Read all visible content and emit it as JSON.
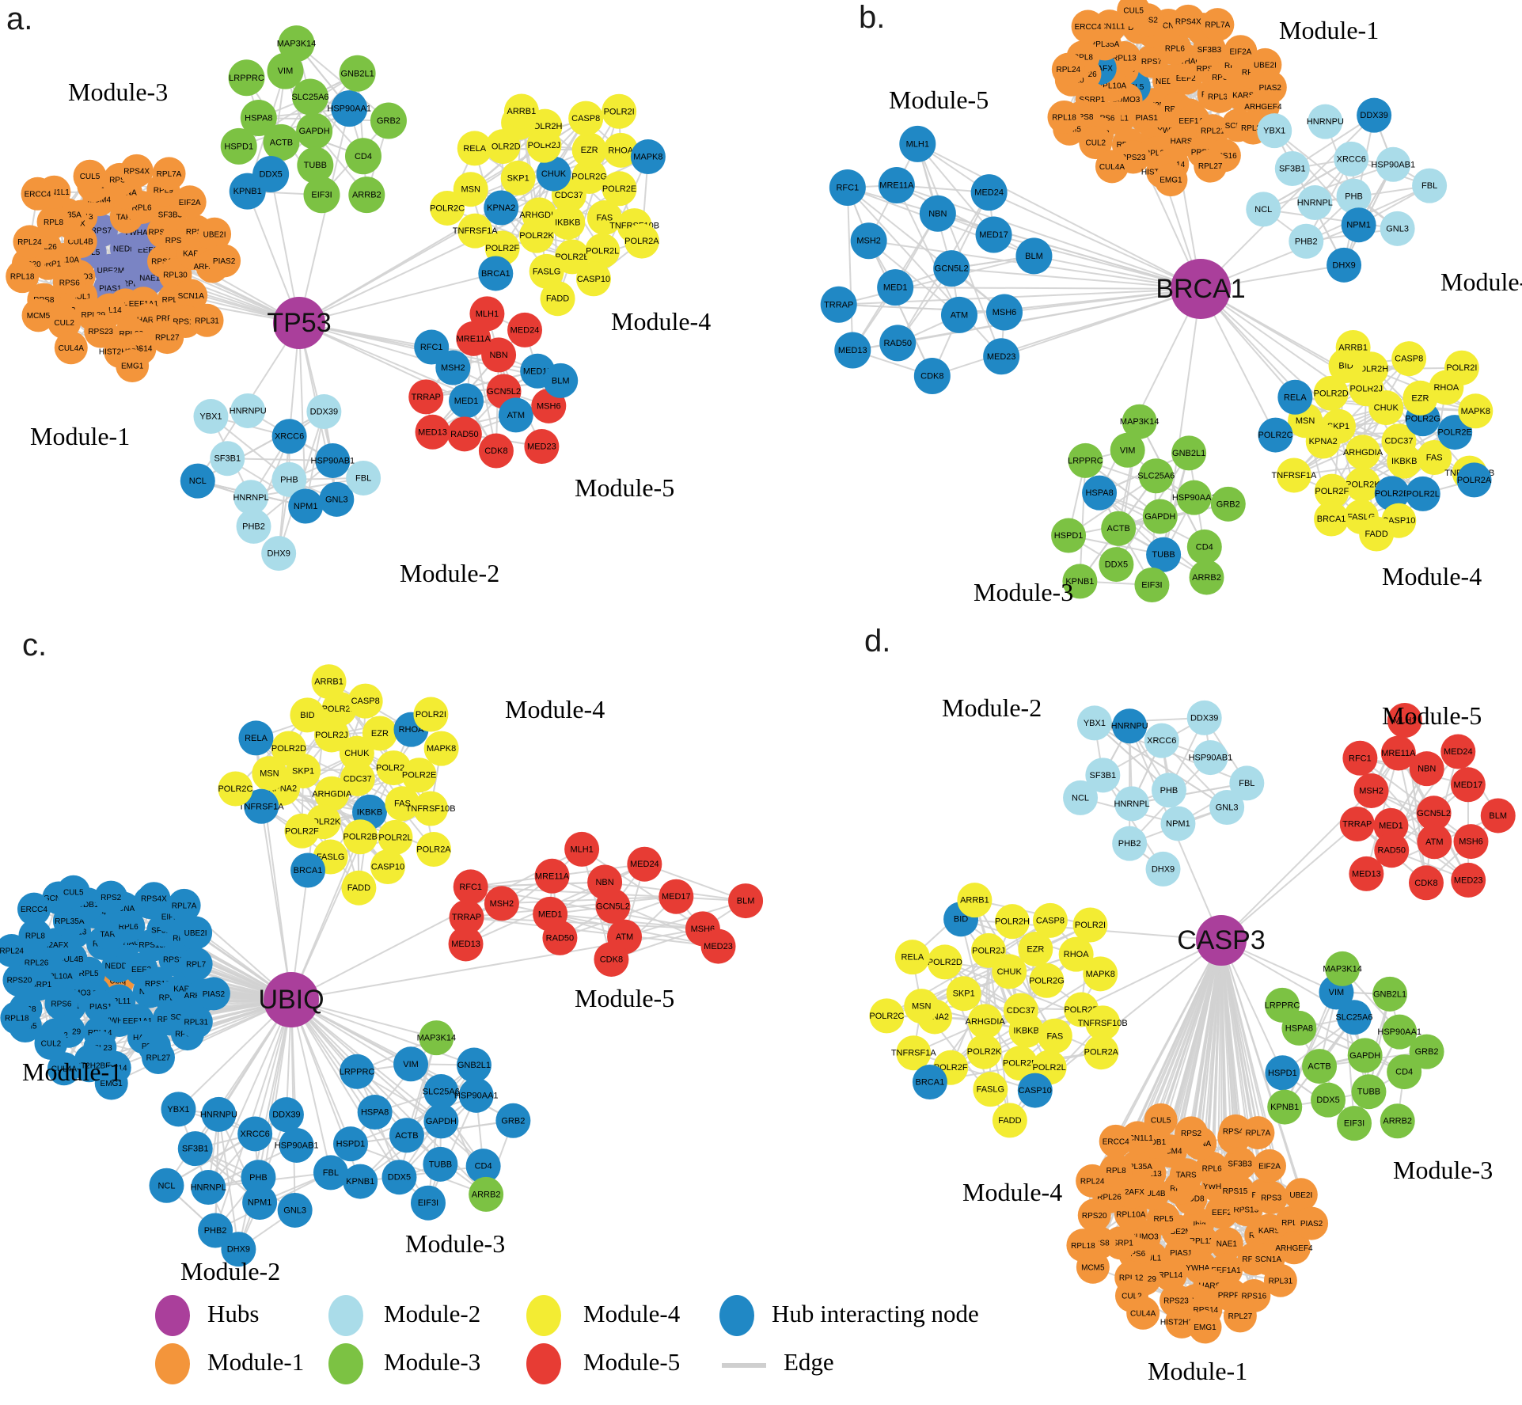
{
  "colors": {
    "hub": "#AA3F9B",
    "module1": "#F3953B",
    "module2": "#AADCE9",
    "module3": "#7CC243",
    "module4": "#F3EC33",
    "module5": "#E73C34",
    "hub_interacting": "#2088C5",
    "indigo": "#7A84C4",
    "edge": "#D2D2D2"
  },
  "sets": {
    "m1": [
      "Ubiq",
      "UBE2M",
      "NEDD8",
      "RPL11",
      "RPL5",
      "EEF2",
      "PIAS1",
      "RPS7",
      "NAE1",
      "SUMO3",
      "YWHAG",
      "YWHAH",
      "CUL4B",
      "RPS13",
      "CUL1",
      "TARS",
      "EEF1A1",
      "RPL10A",
      "RPS15A",
      "RPL14",
      "RPL13",
      "RPL30",
      "RPS6",
      "RPL6",
      "HARS",
      "H2AFX",
      "RPS11",
      "RPL29",
      "MCM4",
      "RPL21",
      "SSRP1",
      "SF3B3",
      "RPL23",
      "RPL35A",
      "KARS",
      "RPL12",
      "PCNA",
      "PRPF3",
      "RPL26",
      "RPS3",
      "RPS23",
      "DDB1",
      "SCN1A",
      "RPS8",
      "RPL9",
      "RPS14",
      "RPL8",
      "RPL7",
      "CUL2",
      "RPS2",
      "RPS16",
      "RPS20",
      "EIF2A",
      "HIST2H2BE",
      "GCN1L1",
      "ARHGEF4",
      "MCM5",
      "RPS4X",
      "RPL27",
      "RPL24",
      "UBE2I",
      "CUL4A",
      "CUL5",
      "RPL31",
      "RPL18",
      "RPL7A",
      "EMG1",
      "ERCC4",
      "PIAS2"
    ],
    "m2": [
      "PHB",
      "HNRNPL",
      "XRCC6",
      "NPM1",
      "SF3B1",
      "HSP90AB1",
      "PHB2",
      "HNRNPU",
      "GNL3",
      "NCL",
      "DDX39",
      "DHX9",
      "YBX1",
      "FBL"
    ],
    "m3": [
      "GAPDH",
      "ACTB",
      "SLC25A6",
      "TUBB",
      "HSPA8",
      "HSP90AA1",
      "DDX5",
      "VIM",
      "CD4",
      "HSPD1",
      "GNB2L1",
      "EIF3I",
      "LRPPRC",
      "GRB2",
      "KPNB1",
      "MAP3K14",
      "ARRB2"
    ],
    "m4": [
      "CDC37",
      "ARHGDIA",
      "CHUK",
      "IKBKB",
      "SKP1",
      "POLR2G",
      "POLR2K",
      "POLR2J",
      "FAS",
      "KPNA2",
      "EZR",
      "POLR2B",
      "POLR2D",
      "POLR2E",
      "POLR2F",
      "POLR2H",
      "POLR2L",
      "MSN",
      "RHOA",
      "FASLG",
      "BID",
      "TNFRSF10B",
      "TNFRSF1A",
      "CASP8",
      "CASP10",
      "RELA",
      "MAPK8",
      "BRCA1",
      "ARRB1",
      "POLR2A",
      "POLR2C",
      "POLR2I",
      "FADD"
    ],
    "m5": [
      "GCN5L2",
      "MED1",
      "NBN",
      "ATM",
      "MSH2",
      "MED17",
      "RAD50",
      "MRE11A",
      "MSH6",
      "TRRAP",
      "MED24",
      "CDK8",
      "RFC1",
      "BLM",
      "MED13",
      "MLH1",
      "MED23"
    ]
  },
  "figure": {
    "panels": [
      {
        "id": "a",
        "letter": "a.",
        "hub": {
          "label": "TP53"
        },
        "modules": [
          {
            "caption": "Module-3",
            "color": "module3",
            "nodes_from": "m3",
            "recolor": {
              "DDX5": "hub_interacting",
              "KPNB1": "hub_interacting",
              "HSP90AA1": "hub_interacting"
            },
            "hub_linked": [
              "DDX5",
              "KPNB1",
              "HSP90AA1"
            ]
          },
          {
            "caption": "Module-4",
            "color": "module4",
            "nodes_from": "m4",
            "recolor": {
              "KPNA2": "hub_interacting",
              "CHUK": "hub_interacting",
              "MAPK8": "hub_interacting",
              "BRCA1": "hub_interacting"
            },
            "hub_linked": [
              "KPNA2",
              "CHUK",
              "MAPK8",
              "BRCA1"
            ]
          },
          {
            "caption": "Module-1",
            "color": "module1",
            "nodes_from": "m1",
            "recolor": {
              "Ubiq": "indigo",
              "UBE2M": "indigo",
              "NEDD8": "indigo",
              "RPL11": "indigo",
              "RPL5": "indigo",
              "EEF2": "indigo",
              "PIAS1": "indigo",
              "RPS7": "indigo",
              "NAE1": "indigo",
              "YWHAG": "indigo"
            },
            "hub_linked": [
              "Ubiq",
              "UBE2M",
              "NEDD8",
              "RPL11",
              "RPL5",
              "EEF2",
              "PIAS1",
              "RPS7",
              "NAE1",
              "YWHAG"
            ]
          },
          {
            "caption": "Module-2",
            "color": "module2",
            "nodes_from": "m2",
            "recolor": {
              "XRCC6": "hub_interacting",
              "NPM1": "hub_interacting",
              "HSP90AB1": "hub_interacting",
              "GNL3": "hub_interacting",
              "NCL": "hub_interacting"
            },
            "hub_linked": [
              "XRCC6",
              "NPM1",
              "HSP90AB1",
              "GNL3",
              "NCL"
            ]
          },
          {
            "caption": "Module-5",
            "color": "module5",
            "nodes_from": "m5",
            "recolor": {
              "MSH2": "hub_interacting",
              "MED17": "hub_interacting",
              "MED1": "hub_interacting",
              "RFC1": "hub_interacting",
              "BLM": "hub_interacting",
              "ATM": "hub_interacting"
            },
            "hub_linked": [
              "MSH2",
              "MED17",
              "MED1",
              "RFC1",
              "BLM",
              "ATM"
            ]
          }
        ]
      },
      {
        "id": "b",
        "letter": "b.",
        "hub": {
          "label": "BRCA1"
        },
        "modules": [
          {
            "caption": "Module-5",
            "color": "module5",
            "nodes_from": "m5",
            "recolor_all": "hub_interacting",
            "hub_linked_all": true
          },
          {
            "caption": "Module-1",
            "color": "module1",
            "nodes_from": "m1",
            "recolor": {
              "H2AFX": "hub_interacting",
              "Ubiq": "hub_interacting",
              "RPL5": "hub_interacting"
            },
            "hub_linked": [
              "H2AFX",
              "Ubiq",
              "RPL5"
            ]
          },
          {
            "caption": "Module-2",
            "color": "module2",
            "nodes_from": "m2",
            "recolor": {
              "NPM1": "hub_interacting",
              "DHX9": "hub_interacting",
              "DDX39": "hub_interacting"
            },
            "hub_linked": [
              "NPM1",
              "DHX9",
              "DDX39"
            ]
          },
          {
            "caption": "Module-3",
            "color": "module3",
            "nodes_from": "m3",
            "recolor": {
              "TUBB": "hub_interacting",
              "HSPA8": "hub_interacting"
            },
            "hub_linked": [
              "TUBB",
              "HSPA8"
            ]
          },
          {
            "caption": "Module-4",
            "color": "module4",
            "nodes_from": "m4",
            "recolor": {
              "POLR2A": "hub_interacting",
              "POLR2B": "hub_interacting",
              "POLR2C": "hub_interacting",
              "POLR2L": "hub_interacting",
              "POLR2E": "hub_interacting",
              "POLR2G": "hub_interacting",
              "RELA": "hub_interacting"
            },
            "hub_linked": [
              "POLR2A",
              "POLR2B",
              "POLR2C",
              "POLR2L",
              "POLR2E",
              "POLR2G",
              "RELA"
            ]
          }
        ]
      },
      {
        "id": "c",
        "letter": "c.",
        "hub": {
          "label": "UBIQ"
        },
        "modules": [
          {
            "caption": "Module-4",
            "color": "module4",
            "nodes_from": "m4",
            "recolor": {
              "BRCA1": "hub_interacting",
              "IKBKB": "hub_interacting",
              "RELA": "hub_interacting",
              "TNFRSF1A": "hub_interacting",
              "RHOA": "hub_interacting"
            },
            "hub_linked": [
              "BRCA1",
              "IKBKB",
              "RELA",
              "TNFRSF1A",
              "RHOA"
            ]
          },
          {
            "caption": "Module-1",
            "color": "module1",
            "nodes_from": "m1",
            "recolor_all": "hub_interacting",
            "recolor": {
              "Ubiq": "module1"
            },
            "hub_linked_all": true
          },
          {
            "caption": "Module-2",
            "color": "module2",
            "nodes_from": "m2",
            "recolor_all": "hub_interacting",
            "hub_linked_all": true
          },
          {
            "caption": "Module-3",
            "color": "module3",
            "nodes_from": "m3",
            "recolor_all": "hub_interacting",
            "recolor": {
              "ARRB2": "module3",
              "MAP3K14": "module3"
            },
            "hub_linked_all": true
          },
          {
            "caption": "Module-5",
            "color": "module5",
            "nodes_from": "m5",
            "hub_linked": [
              "MSH6",
              "MLH1"
            ]
          }
        ]
      },
      {
        "id": "d",
        "letter": "d.",
        "hub": {
          "label": "CASP3"
        },
        "modules": [
          {
            "caption": "Module-2",
            "color": "module2",
            "nodes_from": "m2",
            "recolor": {
              "HNRNPU": "hub_interacting"
            },
            "hub_linked": [
              "HNRNPU"
            ]
          },
          {
            "caption": "Module-5",
            "color": "module5",
            "nodes_from": "m5",
            "hub_linked": [
              "MSH2",
              "TRRAP"
            ]
          },
          {
            "caption": "Module-4",
            "color": "module4",
            "nodes_from": "m4",
            "recolor": {
              "BRCA1": "hub_interacting",
              "CASP10": "hub_interacting",
              "BID": "hub_interacting"
            },
            "hub_linked": [
              "BRCA1",
              "CASP10",
              "BID"
            ]
          },
          {
            "caption": "Module-3",
            "color": "module3",
            "nodes_from": "m3",
            "recolor": {
              "VIM": "hub_interacting",
              "SLC25A6": "hub_interacting",
              "HSPD1": "hub_interacting"
            },
            "hub_linked": [
              "VIM",
              "SLC25A6",
              "HSPD1"
            ]
          },
          {
            "caption": "Module-1",
            "color": "module1",
            "nodes_from": "m1",
            "hub_linked_all": true
          }
        ]
      }
    ],
    "legend": {
      "items": [
        {
          "label": "Hubs",
          "color": "hub"
        },
        {
          "label": "Module-2",
          "color": "module2"
        },
        {
          "label": "Module-4",
          "color": "module4"
        },
        {
          "label": "Hub interacting node",
          "color": "hub_interacting"
        },
        {
          "label": "Module-1",
          "color": "module1"
        },
        {
          "label": "Module-3",
          "color": "module3"
        },
        {
          "label": "Module-5",
          "color": "module5"
        },
        {
          "label": "Edge",
          "color": "edge",
          "type": "line"
        }
      ]
    }
  }
}
